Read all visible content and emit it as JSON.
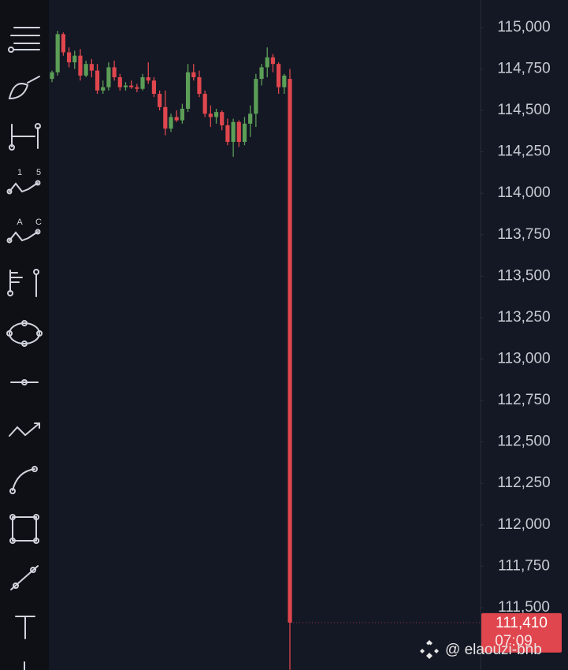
{
  "chart_data": {
    "type": "candlestick",
    "ylim": [
      111124,
      115166
    ],
    "yticks": [
      {
        "value": 115000,
        "label": "115,000"
      },
      {
        "value": 114750,
        "label": "114,750"
      },
      {
        "value": 114500,
        "label": "114,500"
      },
      {
        "value": 114250,
        "label": "114,250"
      },
      {
        "value": 114000,
        "label": "114,000"
      },
      {
        "value": 113750,
        "label": "113,750"
      },
      {
        "value": 113500,
        "label": "113,500"
      },
      {
        "value": 113250,
        "label": "113,250"
      },
      {
        "value": 113000,
        "label": "113,000"
      },
      {
        "value": 112750,
        "label": "112,750"
      },
      {
        "value": 112500,
        "label": "112,500"
      },
      {
        "value": 112250,
        "label": "112,250"
      },
      {
        "value": 112000,
        "label": "112,000"
      },
      {
        "value": 111750,
        "label": "111,750"
      },
      {
        "value": 111500,
        "label": "111,500"
      }
    ],
    "up_color": "#5c9e57",
    "down_color": "#e0464e",
    "open": [
      114690,
      114730,
      114960,
      114850,
      114790,
      114830,
      114710,
      114780,
      114740,
      114620,
      114640,
      114760,
      114700,
      114640,
      114650,
      114640,
      114630,
      114700,
      114680,
      114600,
      114520,
      114390,
      114460,
      114440,
      114510,
      114730,
      114700,
      114600,
      114480,
      114460,
      114490,
      114410,
      114310,
      114430,
      114310,
      114420,
      114480,
      114690,
      114760,
      114820,
      114780,
      114640,
      114690
    ],
    "high": [
      114740,
      114980,
      114970,
      114880,
      114860,
      114870,
      114800,
      114810,
      114780,
      114680,
      114790,
      114800,
      114720,
      114670,
      114680,
      114660,
      114720,
      114790,
      114700,
      114620,
      114620,
      114480,
      114500,
      114540,
      114780,
      114780,
      114740,
      114620,
      114530,
      114510,
      114500,
      114450,
      114450,
      114440,
      114460,
      114530,
      114720,
      114780,
      114880,
      114840,
      114790,
      114720,
      114750
    ],
    "low": [
      114670,
      114710,
      114830,
      114760,
      114750,
      114680,
      114700,
      114700,
      114600,
      114600,
      114620,
      114680,
      114620,
      114620,
      114630,
      114610,
      114620,
      114660,
      114580,
      114500,
      114350,
      114370,
      114430,
      114420,
      114490,
      114680,
      114580,
      114460,
      114400,
      114420,
      114380,
      114290,
      114220,
      114280,
      114290,
      114340,
      114400,
      114650,
      114700,
      114730,
      114600,
      114600,
      111125
    ],
    "close": [
      114730,
      114960,
      114850,
      114790,
      114830,
      114710,
      114780,
      114740,
      114620,
      114640,
      114760,
      114700,
      114640,
      114650,
      114640,
      114630,
      114700,
      114680,
      114600,
      114520,
      114390,
      114460,
      114440,
      114510,
      114730,
      114700,
      114600,
      114480,
      114460,
      114490,
      114410,
      114310,
      114430,
      114310,
      114420,
      114480,
      114690,
      114760,
      114820,
      114780,
      114640,
      114710,
      111410
    ],
    "last_price_label": "111,410",
    "countdown": "07:09",
    "watermark": "@ elaouzi-bnb",
    "toolbar": {
      "icon_texts": [
        "1",
        "5",
        "A",
        "C"
      ]
    }
  }
}
